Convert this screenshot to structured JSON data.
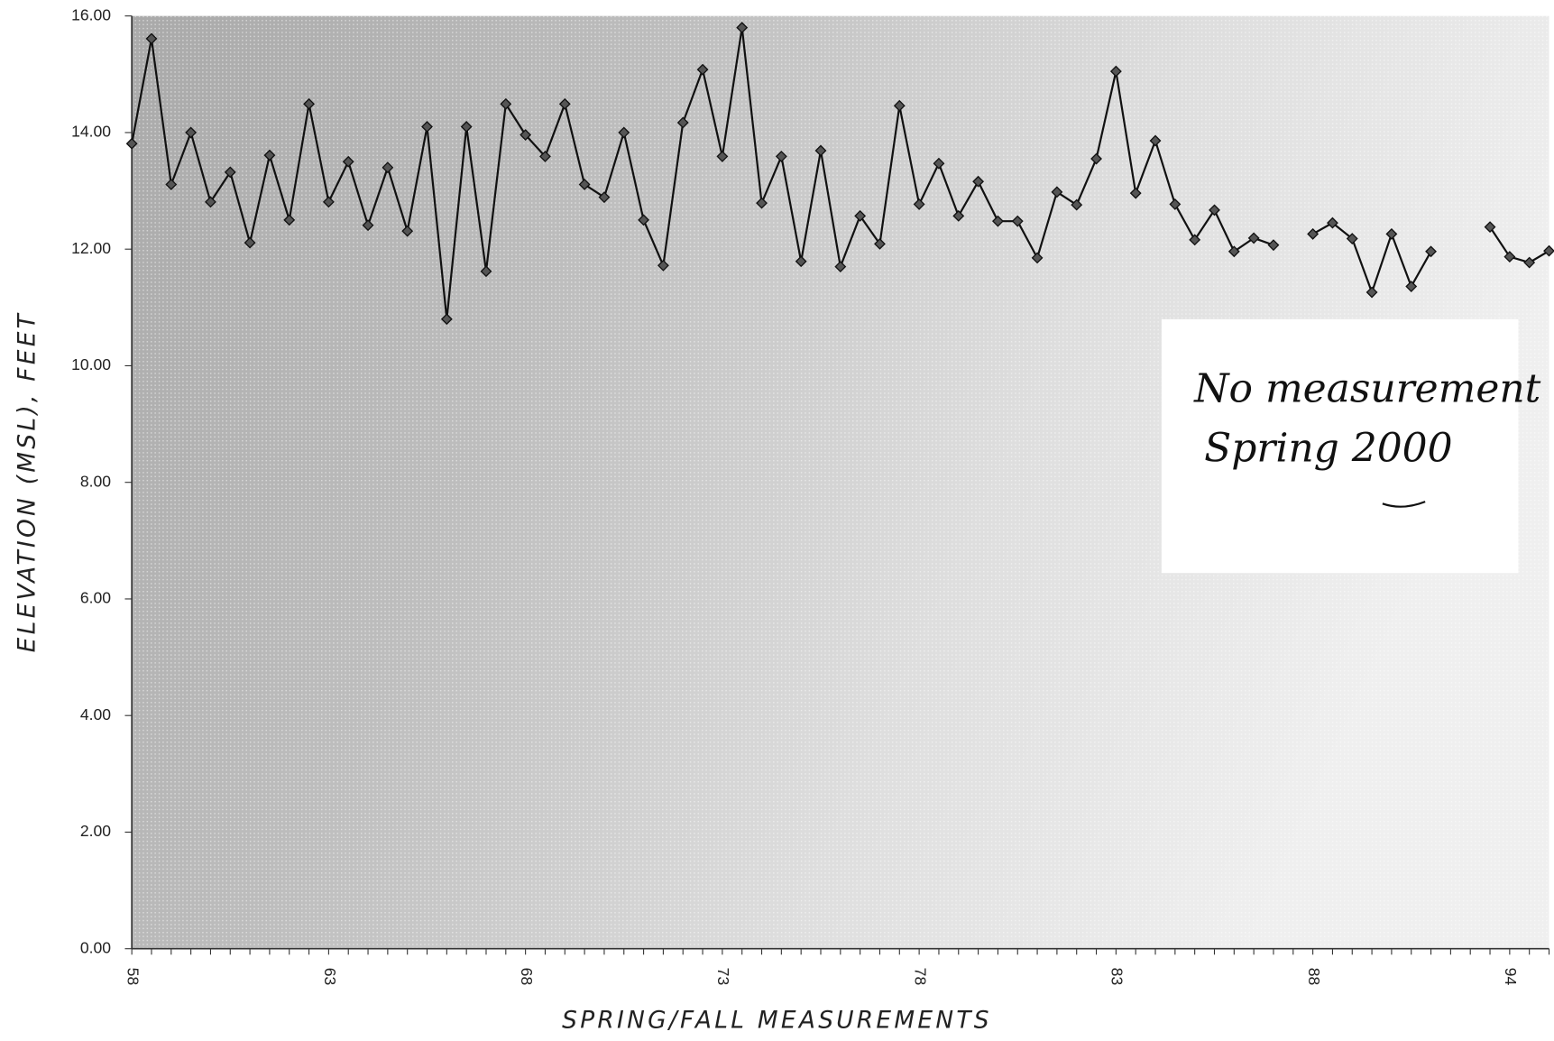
{
  "chart_data": {
    "type": "line",
    "x_label": "SPRING/FALL MEASUREMENTS",
    "y_label": "ELEVATION (MSL), FEET",
    "annotation": [
      "No measurement",
      "Spring 2000"
    ],
    "categories": [
      "58",
      null,
      null,
      null,
      null,
      null,
      null,
      null,
      null,
      null,
      "63",
      null,
      null,
      null,
      null,
      null,
      null,
      null,
      null,
      null,
      "68",
      null,
      null,
      null,
      null,
      null,
      null,
      null,
      null,
      null,
      "73",
      null,
      null,
      null,
      null,
      null,
      null,
      null,
      null,
      null,
      "78",
      null,
      null,
      null,
      null,
      null,
      null,
      null,
      null,
      null,
      "83",
      null,
      null,
      null,
      null,
      null,
      null,
      null,
      null,
      null,
      "88",
      null,
      null,
      null,
      null,
      null,
      null,
      null,
      null,
      null,
      "94",
      null,
      null
    ],
    "values": [
      13.81,
      15.61,
      13.11,
      14.0,
      12.81,
      13.32,
      12.11,
      13.61,
      12.5,
      14.49,
      12.81,
      13.5,
      12.41,
      13.4,
      12.31,
      14.1,
      10.8,
      14.1,
      11.62,
      14.49,
      13.96,
      13.59,
      14.49,
      13.11,
      12.89,
      14.0,
      12.5,
      11.72,
      14.17,
      15.08,
      13.59,
      15.8,
      12.79,
      13.59,
      11.79,
      13.69,
      11.7,
      12.57,
      12.09,
      14.46,
      12.77,
      13.47,
      12.57,
      13.16,
      12.48,
      12.48,
      11.85,
      12.98,
      12.76,
      13.55,
      15.05,
      12.96,
      13.86,
      12.77,
      12.16,
      12.67,
      11.96,
      12.19,
      12.07,
      null,
      12.26,
      12.45,
      12.18,
      11.26,
      12.26,
      11.36,
      11.96,
      null,
      null,
      12.38,
      11.87,
      11.77,
      11.97
    ],
    "color": "#111111",
    "ylim": [
      0,
      16
    ],
    "yticks": [
      {
        "value": 0,
        "label": "0.00"
      },
      {
        "value": 2,
        "label": "2.00"
      },
      {
        "value": 4,
        "label": "4.00"
      },
      {
        "value": 6,
        "label": "6.00"
      },
      {
        "value": 8,
        "label": "8.00"
      },
      {
        "value": 10,
        "label": "10.00"
      },
      {
        "value": 12,
        "label": "12.00"
      },
      {
        "value": 14,
        "label": "14.00"
      },
      {
        "value": 16,
        "label": "16.00"
      }
    ]
  }
}
